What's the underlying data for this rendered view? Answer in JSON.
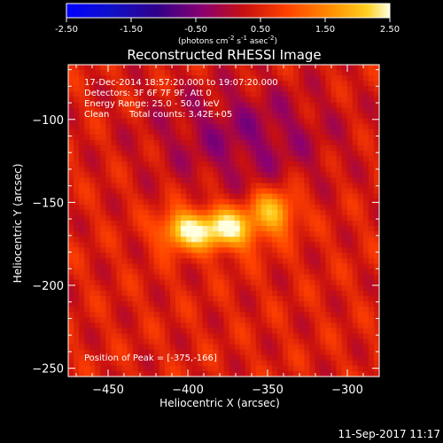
{
  "chart_data": {
    "type": "heatmap",
    "title": "Reconstructed RHESSI Image",
    "xlabel": "Heliocentric X (arcsec)",
    "ylabel": "Heliocentric Y (arcsec)",
    "xlim": [
      -475,
      -280
    ],
    "ylim": [
      -255,
      -67
    ],
    "x_ticks": [
      -450,
      -400,
      -350,
      -300
    ],
    "y_ticks": [
      -250,
      -200,
      -150,
      -100
    ],
    "colorbar": {
      "min": -2.5,
      "max": 2.5,
      "ticks": [
        "-2.50",
        "-1.50",
        "-0.50",
        "0.50",
        "1.50",
        "2.50"
      ],
      "units_label": "(photons cm",
      "units_parts": [
        "(photons cm",
        "-2",
        " s",
        "-1",
        " asec",
        "-2",
        ")"
      ]
    },
    "sources": [
      {
        "x": -378,
        "y": -166,
        "peak": 2.5,
        "sigma_x": 16,
        "sigma_y": 9
      },
      {
        "x": -405,
        "y": -167,
        "peak": 1.9,
        "sigma_x": 10,
        "sigma_y": 8
      },
      {
        "x": -345,
        "y": -155,
        "peak": 1.9,
        "sigma_x": 10,
        "sigma_y": 9
      }
    ],
    "background_level": 0.45,
    "dark_region": {
      "x": -365,
      "y": -110,
      "depth": -0.7,
      "sigma_x": 40,
      "sigma_y": 22
    },
    "annotations": {
      "time_range": "17-Dec-2014 18:57:20.000 to 19:07:20.000",
      "detectors": "Detectors: 3F 6F 7F 9F, Att 0",
      "energy": "Energy Range: 25.0 - 50.0 keV",
      "clean": "Clean",
      "counts": "Total counts: 3.42E+05",
      "peak": "Position of Peak = [-375,-166]"
    },
    "grid": false,
    "footer": "11-Sep-2017 11:17"
  }
}
